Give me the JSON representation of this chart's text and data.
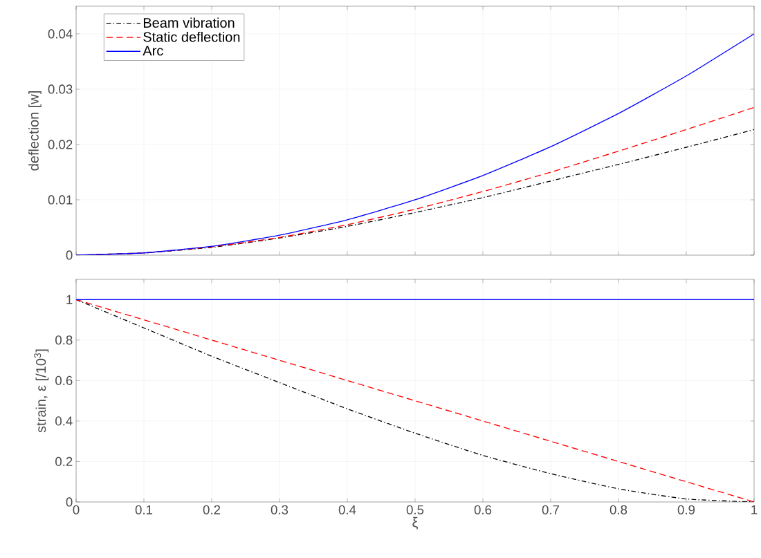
{
  "chart_data": [
    {
      "type": "line",
      "ylabel": "deflection [w]",
      "x": [
        0,
        0.1,
        0.2,
        0.3,
        0.4,
        0.5,
        0.6,
        0.7,
        0.8,
        0.9,
        1
      ],
      "series": [
        {
          "name": "Beam vibration",
          "color": "#000000",
          "line_style": "dashdot",
          "values": [
            0,
            0.0004,
            0.0014,
            0.0031,
            0.0052,
            0.0077,
            0.0104,
            0.0134,
            0.0164,
            0.0195,
            0.0227
          ]
        },
        {
          "name": "Static deflection",
          "color": "#ff0000",
          "line_style": "dashed",
          "values": [
            0,
            0.0004,
            0.0015,
            0.0032,
            0.0055,
            0.0083,
            0.0115,
            0.015,
            0.0188,
            0.0227,
            0.0267
          ]
        },
        {
          "name": "Arc",
          "color": "#0000ff",
          "line_style": "solid",
          "values": [
            0,
            0.0004,
            0.0016,
            0.0036,
            0.0064,
            0.01,
            0.0144,
            0.0196,
            0.0256,
            0.0324,
            0.04
          ]
        }
      ],
      "xlim": [
        0,
        1
      ],
      "ylim": [
        0,
        0.045
      ],
      "xticks": [
        0,
        0.1,
        0.2,
        0.3,
        0.4,
        0.5,
        0.6,
        0.7,
        0.8,
        0.9,
        1
      ],
      "yticks": [
        0,
        0.01,
        0.02,
        0.03,
        0.04
      ],
      "grid": true,
      "legend": "top left",
      "tick_labels": "y"
    },
    {
      "type": "line",
      "xlabel": "ξ",
      "ylabel": "strain, ε [/10$^{3}$]",
      "x": [
        0,
        0.1,
        0.2,
        0.3,
        0.4,
        0.5,
        0.6,
        0.7,
        0.8,
        0.9,
        1
      ],
      "series": [
        {
          "color": "#000000",
          "line_style": "dashdot",
          "values": [
            1,
            0.86,
            0.72,
            0.59,
            0.46,
            0.34,
            0.23,
            0.14,
            0.065,
            0.015,
            0
          ]
        },
        {
          "color": "#ff0000",
          "line_style": "dashed",
          "values": [
            1,
            0.9,
            0.8,
            0.7,
            0.6,
            0.5,
            0.4,
            0.3,
            0.2,
            0.1,
            0
          ]
        },
        {
          "color": "#0000ff",
          "line_style": "solid",
          "values": [
            1,
            1,
            1,
            1,
            1,
            1,
            1,
            1,
            1,
            1,
            1
          ]
        }
      ],
      "xlim": [
        0,
        1
      ],
      "ylim": [
        0,
        1.1
      ],
      "xticks": [
        0,
        0.1,
        0.2,
        0.3,
        0.4,
        0.5,
        0.6,
        0.7,
        0.8,
        0.9,
        1
      ],
      "yticks": [
        0,
        0.2,
        0.4,
        0.6,
        0.8,
        1
      ],
      "grid": true
    }
  ]
}
